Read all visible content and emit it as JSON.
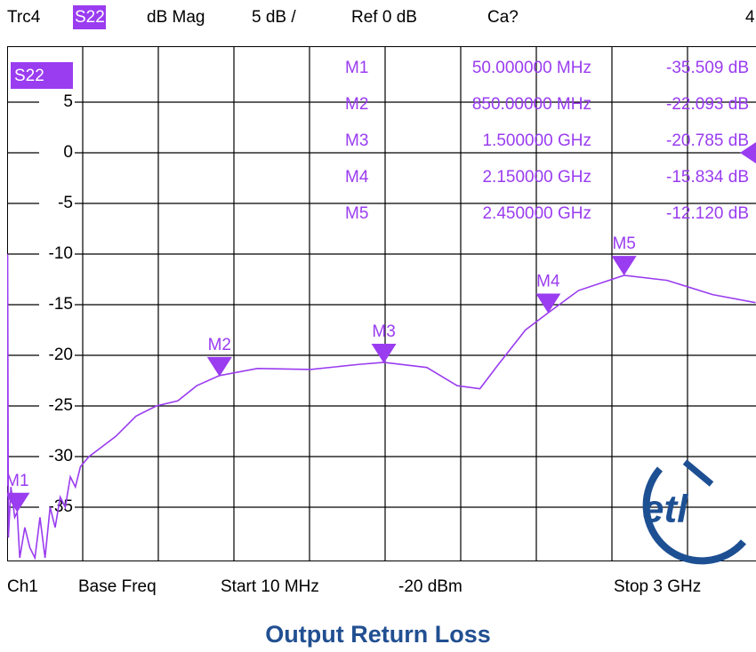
{
  "header": {
    "items": [
      "Trc4",
      "S22",
      "dB Mag",
      "5 dB /",
      "Ref 0 dB",
      "Ca?",
      "4"
    ]
  },
  "chart_data": {
    "type": "line",
    "trace_label": "S22",
    "xlim": [
      10,
      3000
    ],
    "xticks": [
      10,
      309,
      608,
      907,
      1206,
      1505,
      1804,
      2103,
      2402,
      2701,
      3000
    ],
    "ylim": [
      -40,
      10
    ],
    "yticks": [
      5,
      0,
      -5,
      -10,
      -15,
      -20,
      -25,
      -30,
      -35
    ],
    "grid": true,
    "series": [
      {
        "name": "S22",
        "color": "#9a3cf0",
        "x": [
          10,
          12,
          15,
          25,
          40,
          50,
          60,
          80,
          100,
          120,
          140,
          160,
          180,
          200,
          220,
          240,
          260,
          280,
          300,
          334,
          440,
          520,
          600,
          685,
          760,
          850,
          1000,
          1210,
          1400,
          1500,
          1670,
          1790,
          1880,
          1950,
          2060,
          2150,
          2270,
          2450,
          2620,
          2800,
          2970
        ],
        "values": [
          -32,
          -10,
          -38,
          -33,
          -36,
          -35.5,
          -40,
          -37,
          -39,
          -40,
          -36,
          -40,
          -35,
          -37,
          -34,
          -35,
          -32,
          -33,
          -31,
          -30,
          -28,
          -26,
          -25,
          -24.5,
          -23,
          -22,
          -21.3,
          -21.4,
          -20.9,
          -20.7,
          -21.2,
          -23,
          -23.3,
          -21,
          -17.5,
          -15.8,
          -13.6,
          -12.1,
          -12.6,
          -14,
          -14.8
        ]
      }
    ],
    "markers": [
      {
        "name": "M1",
        "x": 50,
        "value": -35.509,
        "x_label": "50.000000 MHz",
        "value_label": "-35.509 dB"
      },
      {
        "name": "M2",
        "x": 850,
        "value": -22.093,
        "x_label": "850.00000 MHz",
        "value_label": "-22.093 dB"
      },
      {
        "name": "M3",
        "x": 1500,
        "value": -20.785,
        "x_label": "1.500000 GHz",
        "value_label": "-20.785 dB"
      },
      {
        "name": "M4",
        "x": 2150,
        "value": -15.834,
        "x_label": "2.150000 GHz",
        "value_label": "-15.834 dB"
      },
      {
        "name": "M5",
        "x": 2450,
        "value": -12.12,
        "x_label": "2.450000 GHz",
        "value_label": "-12.120 dB"
      }
    ]
  },
  "footer": [
    "Ch1",
    "Base Freq",
    "Start 10 MHz",
    "-20 dBm",
    "Stop 3 GHz"
  ],
  "logo": "etl",
  "caption": "Output Return Loss"
}
